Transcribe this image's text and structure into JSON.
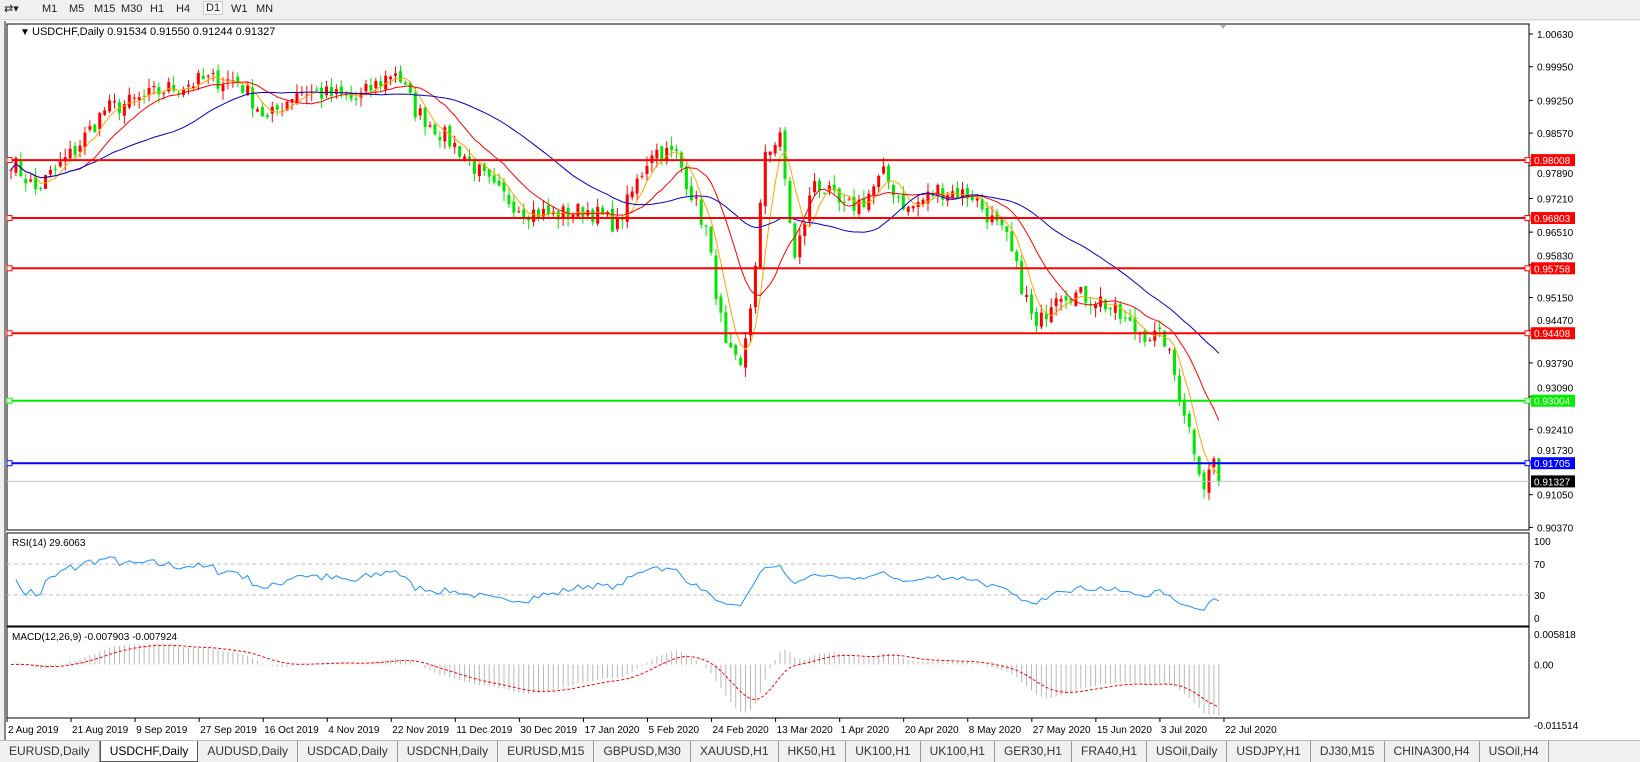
{
  "toolbar": {
    "timeframes": [
      "M1",
      "M5",
      "M15",
      "M30",
      "H1",
      "H4",
      "D1",
      "W1",
      "MN"
    ],
    "active": "D1"
  },
  "chart": {
    "title": "USDCHF,Daily",
    "ohlc": "0.91534 0.91550 0.91244 0.91327",
    "price_axis": [
      "1.00630",
      "0.99950",
      "0.99250",
      "0.98570",
      "0.97890",
      "0.97210",
      "0.96510",
      "0.95830",
      "0.95150",
      "0.94470",
      "0.93790",
      "0.93090",
      "0.92410",
      "0.91730",
      "0.91050",
      "0.90370"
    ],
    "price_range": [
      0.9037,
      1.0063
    ],
    "levels": [
      {
        "price": "0.98008",
        "color": "#ff0000"
      },
      {
        "price": "0.96803",
        "color": "#ff0000"
      },
      {
        "price": "0.95758",
        "color": "#ff0000"
      },
      {
        "price": "0.94408",
        "color": "#ff0000"
      },
      {
        "price": "0.93004",
        "color": "#00ee00"
      },
      {
        "price": "0.91705",
        "color": "#0000ff"
      }
    ],
    "current_price": "0.91327",
    "candle_colors": {
      "up": "#ff0000",
      "down": "#00e600"
    },
    "ma_colors": [
      "#ffa500",
      "#ff0000",
      "#0000cc"
    ],
    "date_axis": [
      "2 Aug 2019",
      "21 Aug 2019",
      "9 Sep 2019",
      "27 Sep 2019",
      "16 Oct 2019",
      "4 Nov 2019",
      "22 Nov 2019",
      "11 Dec 2019",
      "30 Dec 2019",
      "17 Jan 2020",
      "5 Feb 2020",
      "24 Feb 2020",
      "13 Mar 2020",
      "1 Apr 2020",
      "20 Apr 2020",
      "8 May 2020",
      "27 May 2020",
      "15 Jun 2020",
      "3 Jul 2020",
      "22 Jul 2020"
    ],
    "approx_close_path": [
      [
        0,
        0.9801
      ],
      [
        5,
        0.9739
      ],
      [
        13,
        0.9822
      ],
      [
        19,
        0.9905
      ],
      [
        26,
        0.9926
      ],
      [
        31,
        0.9947
      ],
      [
        39,
        0.9967
      ],
      [
        46,
        0.9967
      ],
      [
        52,
        0.9884
      ],
      [
        58,
        0.9947
      ],
      [
        65,
        0.9936
      ],
      [
        70,
        0.9926
      ],
      [
        78,
        0.9988
      ],
      [
        82,
        0.9905
      ],
      [
        91,
        0.9822
      ],
      [
        98,
        0.9739
      ],
      [
        104,
        0.9697
      ],
      [
        110,
        0.9686
      ],
      [
        117,
        0.9697
      ],
      [
        123,
        0.9666
      ],
      [
        130,
        0.9822
      ],
      [
        135,
        0.9811
      ],
      [
        141,
        0.9655
      ],
      [
        145,
        0.9406
      ],
      [
        148,
        0.9364
      ],
      [
        151,
        0.9572
      ],
      [
        153,
        0.9822
      ],
      [
        156,
        0.9843
      ],
      [
        159,
        0.9593
      ],
      [
        163,
        0.976
      ],
      [
        169,
        0.9697
      ],
      [
        173,
        0.9718
      ],
      [
        177,
        0.977
      ],
      [
        182,
        0.9697
      ],
      [
        188,
        0.9739
      ],
      [
        195,
        0.9728
      ],
      [
        202,
        0.9635
      ],
      [
        208,
        0.9447
      ],
      [
        212,
        0.953
      ],
      [
        221,
        0.951
      ],
      [
        228,
        0.9447
      ],
      [
        234,
        0.9427
      ],
      [
        238,
        0.9281
      ],
      [
        242,
        0.9125
      ],
      [
        244,
        0.9178
      ],
      [
        245,
        0.91327
      ]
    ]
  },
  "rsi": {
    "label": "RSI(14) 29.6063",
    "axis": [
      "100",
      "70",
      "30",
      "0"
    ],
    "color": "#1e90ff"
  },
  "macd": {
    "label": "MACD(12,26,9) -0.007903 -0.007924",
    "axis": [
      "0.005818",
      "0.00",
      "-0.011514"
    ]
  },
  "tabs": [
    "EURUSD,Daily",
    "USDCHF,Daily",
    "AUDUSD,Daily",
    "USDCAD,Daily",
    "USDCNH,Daily",
    "EURUSD,M15",
    "GBPUSD,M30",
    "XAUUSD,H1",
    "HK50,H1",
    "UK100,H1",
    "UK100,H1",
    "GER30,H1",
    "FRA40,H1",
    "USOil,Daily",
    "USDJPY,H1",
    "DJ30,M15",
    "CHINA300,H4",
    "USOil,H4"
  ],
  "active_tab": "USDCHF,Daily"
}
